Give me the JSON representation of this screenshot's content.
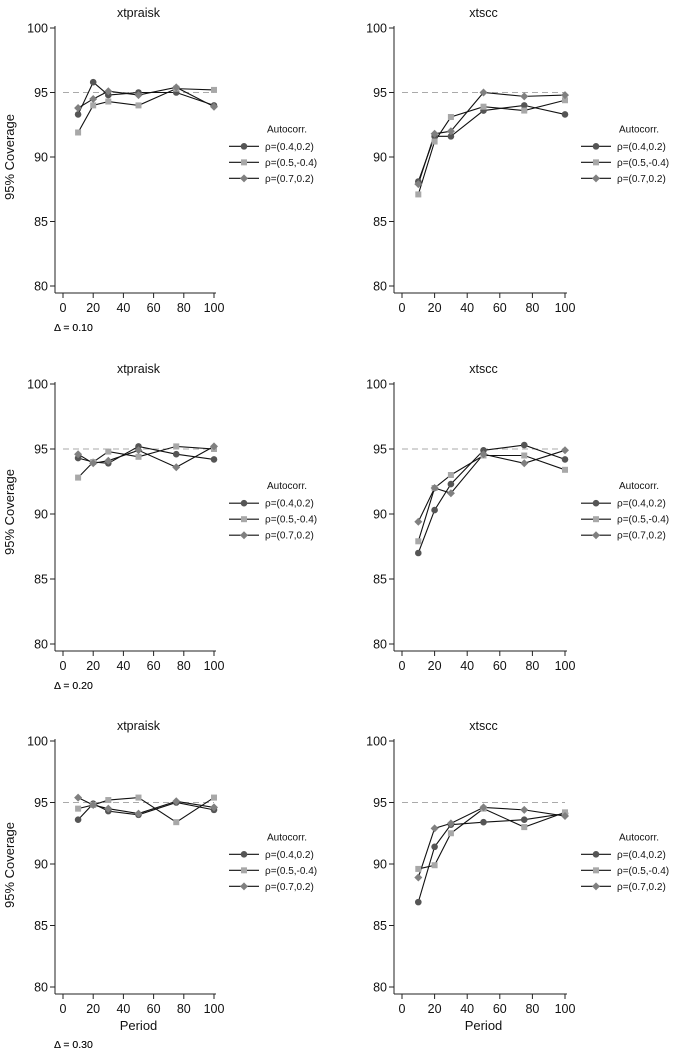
{
  "figure": {
    "ylabel": "95% Coverage",
    "xlabel": "Period",
    "legend_title": "Autocorr.",
    "legend_labels": [
      "ρ=(0.4,0.2)",
      "ρ=(0.5,-0.4)",
      "ρ=(0.7,0.2)"
    ]
  },
  "chart_data": [
    {
      "type": "line",
      "title": "xtpraisk",
      "note": "Δ = 0.10",
      "x": [
        10,
        20,
        30,
        50,
        75,
        100
      ],
      "xlim": [
        0,
        100
      ],
      "ylim": [
        80,
        100
      ],
      "xticks": [
        "0",
        "20",
        "40",
        "60",
        "80",
        "100"
      ],
      "yticks": [
        "80",
        "85",
        "90",
        "95",
        "100"
      ],
      "reference_line": 95,
      "legend_position": "right",
      "grid": false,
      "series": [
        {
          "name": "ρ=(0.4,0.2)",
          "marker": "circle",
          "color": "#555555",
          "values": [
            93.3,
            95.8,
            94.8,
            95.0,
            95.0,
            94.0
          ]
        },
        {
          "name": "ρ=(0.5,-0.4)",
          "marker": "square",
          "color": "#a8a8a8",
          "values": [
            91.9,
            94.0,
            94.3,
            94.0,
            95.3,
            95.2
          ]
        },
        {
          "name": "ρ=(0.7,0.2)",
          "marker": "diamond",
          "color": "#808080",
          "values": [
            93.8,
            94.5,
            95.1,
            94.8,
            95.4,
            93.9
          ]
        }
      ]
    },
    {
      "type": "line",
      "title": "xtscc",
      "note": "Δ = 0.10",
      "x": [
        10,
        20,
        30,
        50,
        75,
        100
      ],
      "xlim": [
        0,
        100
      ],
      "ylim": [
        80,
        100
      ],
      "xticks": [
        "0",
        "20",
        "40",
        "60",
        "80",
        "100"
      ],
      "yticks": [
        "80",
        "85",
        "90",
        "95",
        "100"
      ],
      "reference_line": 95,
      "legend_position": "right",
      "grid": false,
      "series": [
        {
          "name": "ρ=(0.4,0.2)",
          "marker": "circle",
          "color": "#555555",
          "values": [
            88.1,
            91.6,
            91.6,
            93.6,
            94.0,
            93.3
          ]
        },
        {
          "name": "ρ=(0.5,-0.4)",
          "marker": "square",
          "color": "#a8a8a8",
          "values": [
            87.1,
            91.2,
            93.1,
            93.9,
            93.6,
            94.4
          ]
        },
        {
          "name": "ρ=(0.7,0.2)",
          "marker": "diamond",
          "color": "#808080",
          "values": [
            87.9,
            91.8,
            92.0,
            95.0,
            94.7,
            94.8
          ]
        }
      ]
    },
    {
      "type": "line",
      "title": "xtpraisk",
      "note": "Δ = 0.20",
      "x": [
        10,
        20,
        30,
        50,
        75,
        100
      ],
      "xlim": [
        0,
        100
      ],
      "ylim": [
        80,
        100
      ],
      "xticks": [
        "0",
        "20",
        "40",
        "60",
        "80",
        "100"
      ],
      "yticks": [
        "80",
        "85",
        "90",
        "95",
        "100"
      ],
      "reference_line": 95,
      "legend_position": "right",
      "grid": false,
      "series": [
        {
          "name": "ρ=(0.4,0.2)",
          "marker": "circle",
          "color": "#555555",
          "values": [
            94.3,
            94.0,
            93.9,
            95.2,
            94.6,
            94.2
          ]
        },
        {
          "name": "ρ=(0.5,-0.4)",
          "marker": "square",
          "color": "#a8a8a8",
          "values": [
            92.8,
            94.0,
            94.8,
            94.4,
            95.2,
            95.0
          ]
        },
        {
          "name": "ρ=(0.7,0.2)",
          "marker": "diamond",
          "color": "#808080",
          "values": [
            94.6,
            93.9,
            94.1,
            94.9,
            93.6,
            95.2
          ]
        }
      ]
    },
    {
      "type": "line",
      "title": "xtscc",
      "note": "Δ = 0.20",
      "x": [
        10,
        20,
        30,
        50,
        75,
        100
      ],
      "xlim": [
        0,
        100
      ],
      "ylim": [
        80,
        100
      ],
      "xticks": [
        "0",
        "20",
        "40",
        "60",
        "80",
        "100"
      ],
      "yticks": [
        "80",
        "85",
        "90",
        "95",
        "100"
      ],
      "reference_line": 95,
      "legend_position": "right",
      "grid": false,
      "series": [
        {
          "name": "ρ=(0.4,0.2)",
          "marker": "circle",
          "color": "#555555",
          "values": [
            87.0,
            90.3,
            92.3,
            94.9,
            95.3,
            94.2
          ]
        },
        {
          "name": "ρ=(0.5,-0.4)",
          "marker": "square",
          "color": "#a8a8a8",
          "values": [
            87.9,
            92.0,
            93.0,
            94.5,
            94.5,
            93.4
          ]
        },
        {
          "name": "ρ=(0.7,0.2)",
          "marker": "diamond",
          "color": "#808080",
          "values": [
            89.4,
            92.0,
            91.6,
            94.6,
            93.9,
            94.9
          ]
        }
      ]
    },
    {
      "type": "line",
      "title": "xtpraisk",
      "note": "Δ = 0.30",
      "x": [
        10,
        20,
        30,
        50,
        75,
        100
      ],
      "xlim": [
        0,
        100
      ],
      "ylim": [
        80,
        100
      ],
      "xticks": [
        "0",
        "20",
        "40",
        "60",
        "80",
        "100"
      ],
      "yticks": [
        "80",
        "85",
        "90",
        "95",
        "100"
      ],
      "xlabel": "Period",
      "reference_line": 95,
      "legend_position": "right",
      "grid": false,
      "series": [
        {
          "name": "ρ=(0.4,0.2)",
          "marker": "circle",
          "color": "#555555",
          "values": [
            93.6,
            94.9,
            94.3,
            94.0,
            95.0,
            94.4
          ]
        },
        {
          "name": "ρ=(0.5,-0.4)",
          "marker": "square",
          "color": "#a8a8a8",
          "values": [
            94.5,
            94.8,
            95.2,
            95.4,
            93.4,
            95.4
          ]
        },
        {
          "name": "ρ=(0.7,0.2)",
          "marker": "diamond",
          "color": "#808080",
          "values": [
            95.4,
            94.8,
            94.5,
            94.1,
            95.1,
            94.6
          ]
        }
      ]
    },
    {
      "type": "line",
      "title": "xtscc",
      "note": "Δ = 0.30",
      "x": [
        10,
        20,
        30,
        50,
        75,
        100
      ],
      "xlim": [
        0,
        100
      ],
      "ylim": [
        80,
        100
      ],
      "xticks": [
        "0",
        "20",
        "40",
        "60",
        "80",
        "100"
      ],
      "yticks": [
        "80",
        "85",
        "90",
        "95",
        "100"
      ],
      "xlabel": "Period",
      "reference_line": 95,
      "legend_position": "right",
      "grid": false,
      "series": [
        {
          "name": "ρ=(0.4,0.2)",
          "marker": "circle",
          "color": "#555555",
          "values": [
            86.9,
            91.4,
            93.2,
            93.4,
            93.6,
            94.1
          ]
        },
        {
          "name": "ρ=(0.5,-0.4)",
          "marker": "square",
          "color": "#a8a8a8",
          "values": [
            89.6,
            89.9,
            92.5,
            94.5,
            93.0,
            94.2
          ]
        },
        {
          "name": "ρ=(0.7,0.2)",
          "marker": "diamond",
          "color": "#808080",
          "values": [
            88.9,
            92.9,
            93.3,
            94.6,
            94.4,
            93.9
          ]
        }
      ]
    }
  ]
}
